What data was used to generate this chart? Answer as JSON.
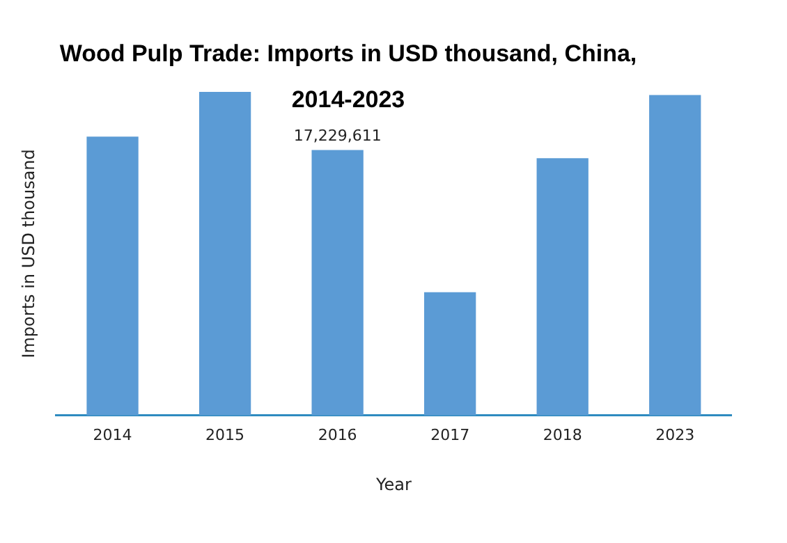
{
  "chart_data": {
    "type": "bar",
    "title": "Wood Pulp Trade: Imports in USD thousand, China, 2014-2023",
    "xlabel": "Year",
    "ylabel": "Imports in USD thousand",
    "ylim": [
      0,
      21000000
    ],
    "categories": [
      "2014",
      "2015",
      "2016",
      "2017",
      "2018",
      "2023"
    ],
    "values": [
      18100000,
      21000000,
      17229611,
      8000000,
      16700000,
      20800000
    ],
    "value_labels": [
      null,
      null,
      "17,229,611",
      null,
      null,
      null
    ],
    "color": "#5b9bd5",
    "grid": false,
    "legend": false
  }
}
